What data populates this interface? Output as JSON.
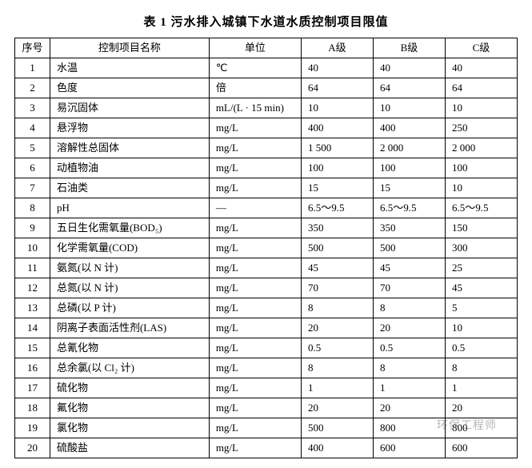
{
  "title": "表 1  污水排入城镇下水道水质控制项目限值",
  "columns": [
    "序号",
    "控制项目名称",
    "单位",
    "A级",
    "B级",
    "C级"
  ],
  "rows": [
    {
      "idx": "1",
      "name": "水温",
      "unit": "℃",
      "a": "40",
      "b": "40",
      "c": "40"
    },
    {
      "idx": "2",
      "name": "色度",
      "unit": "倍",
      "a": "64",
      "b": "64",
      "c": "64"
    },
    {
      "idx": "3",
      "name": "易沉固体",
      "unit": "mL/(L · 15 min)",
      "a": "10",
      "b": "10",
      "c": "10"
    },
    {
      "idx": "4",
      "name": "悬浮物",
      "unit": "mg/L",
      "a": "400",
      "b": "400",
      "c": "250"
    },
    {
      "idx": "5",
      "name": "溶解性总固体",
      "unit": "mg/L",
      "a": "1 500",
      "b": "2 000",
      "c": "2 000"
    },
    {
      "idx": "6",
      "name": "动植物油",
      "unit": "mg/L",
      "a": "100",
      "b": "100",
      "c": "100"
    },
    {
      "idx": "7",
      "name": "石油类",
      "unit": "mg/L",
      "a": "15",
      "b": "15",
      "c": "10"
    },
    {
      "idx": "8",
      "name": "pH",
      "unit": "—",
      "a": "6.5～9.5",
      "b": "6.5～9.5",
      "c": "6.5～9.5"
    },
    {
      "idx": "9",
      "name": "五日生化需氧量(BOD₅)",
      "unit": "mg/L",
      "a": "350",
      "b": "350",
      "c": "150"
    },
    {
      "idx": "10",
      "name": "化学需氧量(COD)",
      "unit": "mg/L",
      "a": "500",
      "b": "500",
      "c": "300"
    },
    {
      "idx": "11",
      "name": "氨氮(以 N 计)",
      "unit": "mg/L",
      "a": "45",
      "b": "45",
      "c": "25"
    },
    {
      "idx": "12",
      "name": "总氮(以 N 计)",
      "unit": "mg/L",
      "a": "70",
      "b": "70",
      "c": "45"
    },
    {
      "idx": "13",
      "name": "总磷(以 P 计)",
      "unit": "mg/L",
      "a": "8",
      "b": "8",
      "c": "5"
    },
    {
      "idx": "14",
      "name": "阴离子表面活性剂(LAS)",
      "unit": "mg/L",
      "a": "20",
      "b": "20",
      "c": "10"
    },
    {
      "idx": "15",
      "name": "总氰化物",
      "unit": "mg/L",
      "a": "0.5",
      "b": "0.5",
      "c": "0.5"
    },
    {
      "idx": "16",
      "name": "总余氯(以 Cl₂ 计)",
      "unit": "mg/L",
      "a": "8",
      "b": "8",
      "c": "8"
    },
    {
      "idx": "17",
      "name": "硫化物",
      "unit": "mg/L",
      "a": "1",
      "b": "1",
      "c": "1"
    },
    {
      "idx": "18",
      "name": "氟化物",
      "unit": "mg/L",
      "a": "20",
      "b": "20",
      "c": "20"
    },
    {
      "idx": "19",
      "name": "氯化物",
      "unit": "mg/L",
      "a": "500",
      "b": "800",
      "c": "800"
    },
    {
      "idx": "20",
      "name": "硫酸盐",
      "unit": "mg/L",
      "a": "400",
      "b": "600",
      "c": "600"
    }
  ],
  "watermark": "环保工程师"
}
